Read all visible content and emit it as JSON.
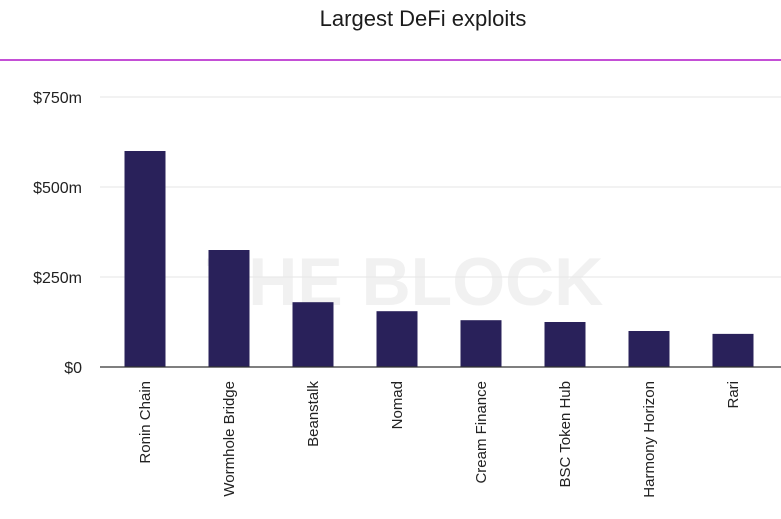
{
  "chart_data": {
    "type": "bar",
    "title": "Largest DeFi exploits",
    "xlabel": "",
    "ylabel": "",
    "categories": [
      "Ronin Chain",
      "Wormhole Bridge",
      "Beanstalk",
      "Nomad",
      "Cream Finance",
      "BSC Token Hub",
      "Harmony Horizon",
      "Rari"
    ],
    "values": [
      600,
      325,
      180,
      155,
      130,
      125,
      100,
      92
    ],
    "unit": "m",
    "ylim": [
      0,
      750
    ],
    "yticks": [
      0,
      250,
      500,
      750
    ],
    "ytick_labels": [
      "$0",
      "$250m",
      "$500m",
      "$750m"
    ],
    "grid": true,
    "legend": "none",
    "watermark": "THE BLOCK",
    "colors": {
      "bar": "#29215a",
      "title_rule": "#c44fd6",
      "grid": "#e6e6e6",
      "baseline": "#333333"
    }
  }
}
